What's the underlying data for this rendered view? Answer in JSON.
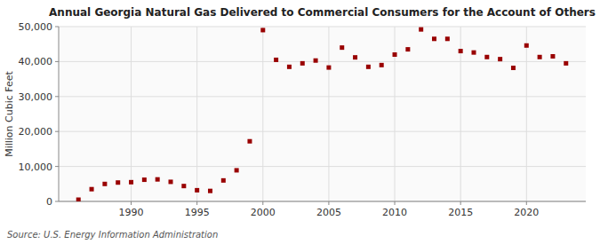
{
  "chart_data": {
    "type": "scatter",
    "title": "Annual Georgia Natural Gas Delivered to Commercial Consumers for the Account of Others",
    "ylabel": "Million Cubic Feet",
    "source": "Source: U.S. Energy Information Administration",
    "color": "#990000",
    "marker": "square",
    "grid": true,
    "x": [
      1986,
      1987,
      1988,
      1989,
      1990,
      1991,
      1992,
      1993,
      1994,
      1995,
      1996,
      1997,
      1998,
      1999,
      2000,
      2001,
      2002,
      2003,
      2004,
      2005,
      2006,
      2007,
      2008,
      2009,
      2010,
      2011,
      2012,
      2013,
      2014,
      2015,
      2016,
      2017,
      2018,
      2019,
      2020,
      2021,
      2022,
      2023
    ],
    "values": [
      500,
      3500,
      5000,
      5400,
      5500,
      6200,
      6300,
      5600,
      4400,
      3200,
      3000,
      6000,
      8900,
      17200,
      49000,
      40500,
      38500,
      39500,
      40300,
      38300,
      44000,
      41200,
      38500,
      39000,
      42000,
      43500,
      49200,
      46500,
      46500,
      43000,
      42600,
      41300,
      40700,
      38200,
      44600,
      41300,
      41500,
      39500
    ],
    "xlim": [
      1984.5,
      2024.5
    ],
    "ylim": [
      0,
      50000
    ],
    "xticks": [
      1990,
      1995,
      2000,
      2005,
      2010,
      2015,
      2020
    ],
    "yticks": [
      0,
      {
        "value": 10000,
        "label": "10,000"
      },
      {
        "value": 20000,
        "label": "20,000"
      },
      {
        "value": 30000,
        "label": "30,000"
      },
      {
        "value": 40000,
        "label": "40,000"
      },
      {
        "value": 50000,
        "label": "50,000"
      }
    ]
  }
}
